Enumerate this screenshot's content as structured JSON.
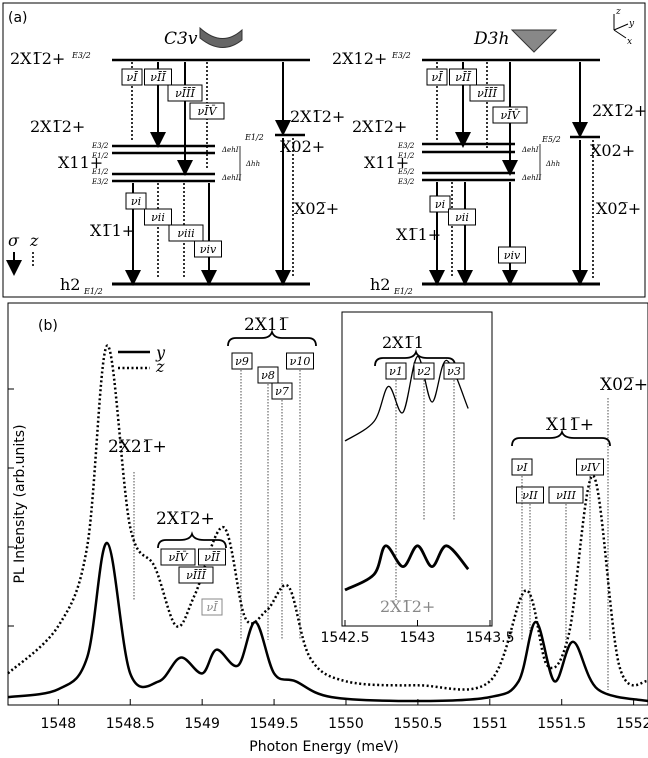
{
  "panel_a": {
    "label": "(a)",
    "c3v": {
      "group": "C3v",
      "top_label": "2X1̅2+",
      "top_sub": "E3/2",
      "mid_left": "2X1̅2+",
      "mid_right": "2X1̅2+",
      "x02_label": "X02+",
      "x02_sub": "E1/2",
      "x11_label": "X11+",
      "x11_subs": [
        "E3/2",
        "E1/2",
        "E1/2",
        "E3/2"
      ],
      "x11bar_label": "X1̅1+",
      "x02bar_label": "X02̅+",
      "ground": "h2",
      "ground_sub": "E1/2",
      "delta_I": "ΔehI",
      "delta_II": "ΔehII",
      "delta_hh": "Δhh",
      "upper_boxes": [
        "νĪ",
        "νĪĪ",
        "νĪĪĪ",
        "νĪV̄"
      ],
      "lower_boxes": [
        "νi",
        "νii",
        "νiii",
        "νiv"
      ]
    },
    "d3h": {
      "group": "D3h",
      "top_label": "2X12+",
      "top_sub": "E3/2",
      "mid_left": "2X1̅2+",
      "mid_right": "2X1̅2+",
      "x02_label": "X02+",
      "x02_sub": "E5/2",
      "x11_label": "X11+",
      "x11_subs": [
        "E3/2",
        "E1/2",
        "E5/2",
        "E3/2"
      ],
      "x11bar_label": "X1̅1+",
      "x02bar_label": "X02̅+",
      "ground": "h2",
      "ground_sub": "E1/2",
      "delta_I": "ΔehI",
      "delta_II": "ΔehII",
      "delta_hh": "Δhh",
      "upper_boxes": [
        "νĪ",
        "νĪĪ",
        "νĪĪĪ",
        "νĪV̄"
      ],
      "lower_boxes": [
        "νi",
        "νii",
        "νiv"
      ]
    },
    "legend_sigma": "σ",
    "legend_z": "z",
    "axes_labels": [
      "z",
      "y",
      "x"
    ]
  },
  "panel_b": {
    "label": "(b)",
    "legend": [
      {
        "name": "y",
        "style": "solid"
      },
      {
        "name": "z",
        "style": "dotted"
      }
    ],
    "labels": {
      "x21": "2X21̅+",
      "x12": "2X1̅2+",
      "x11bracket": "2X11̅",
      "x11plus": "X11̅+",
      "x02": "X02̅+",
      "inset_title": "2X1̅1",
      "inset_x12": "2X1̅2+"
    },
    "main_boxes": [
      "ν9",
      "ν8",
      "ν7",
      "ν10"
    ],
    "left_boxes": [
      "νĪV̄",
      "νĪĪ",
      "νĪĪĪ",
      "νĪ"
    ],
    "right_boxes": [
      "νI",
      "νII",
      "νIII",
      "νIV"
    ],
    "inset_boxes": [
      "ν1",
      "ν2",
      "ν3"
    ]
  },
  "chart_data": [
    {
      "type": "line",
      "xlabel": "Photon Energy (meV)",
      "ylabel": "PL Intensity (arb.units)",
      "xlim": [
        1547.65,
        1552.1
      ],
      "xticks": [
        "1548",
        "1548.5",
        "1549",
        "1549.5",
        "1550",
        "1550.5",
        "1551",
        "1551.5",
        "1552"
      ],
      "legend": "top-left",
      "series": [
        {
          "name": "y",
          "style": "solid",
          "x": [
            1547.65,
            1548.0,
            1548.2,
            1548.34,
            1548.5,
            1548.7,
            1548.85,
            1549.0,
            1549.1,
            1549.25,
            1549.37,
            1549.5,
            1549.65,
            1549.9,
            1550.5,
            1551.0,
            1551.2,
            1551.32,
            1551.45,
            1551.58,
            1551.75,
            1552.1
          ],
          "y": [
            0.02,
            0.04,
            0.12,
            0.41,
            0.08,
            0.06,
            0.12,
            0.08,
            0.14,
            0.1,
            0.21,
            0.08,
            0.06,
            0.02,
            0.01,
            0.02,
            0.06,
            0.21,
            0.06,
            0.16,
            0.04,
            0.01
          ]
        },
        {
          "name": "z",
          "style": "dotted",
          "x": [
            1547.65,
            1548.0,
            1548.2,
            1548.34,
            1548.5,
            1548.67,
            1548.82,
            1548.95,
            1549.15,
            1549.3,
            1549.45,
            1549.6,
            1549.75,
            1550.0,
            1550.5,
            1551.0,
            1551.25,
            1551.4,
            1551.55,
            1551.72,
            1551.9,
            1552.1
          ],
          "y": [
            0.08,
            0.2,
            0.4,
            0.91,
            0.45,
            0.35,
            0.2,
            0.28,
            0.45,
            0.22,
            0.24,
            0.3,
            0.12,
            0.06,
            0.05,
            0.06,
            0.29,
            0.1,
            0.18,
            0.58,
            0.1,
            0.06
          ]
        }
      ]
    },
    {
      "type": "line",
      "xlim": [
        1542.5,
        1543.5
      ],
      "xticks": [
        "1542.5",
        "1543",
        "1543.5"
      ],
      "series": [
        {
          "name": "y",
          "style": "thin",
          "x": [
            1542.5,
            1542.7,
            1542.8,
            1542.9,
            1543.0,
            1543.1,
            1543.2,
            1543.35
          ],
          "y": [
            0.3,
            0.45,
            0.72,
            0.52,
            0.95,
            0.6,
            0.92,
            0.55
          ]
        },
        {
          "name": "y",
          "style": "thick",
          "x": [
            1542.5,
            1542.7,
            1542.78,
            1542.9,
            1543.0,
            1543.1,
            1543.2,
            1543.35
          ],
          "y": [
            0.0,
            0.12,
            0.34,
            0.18,
            0.34,
            0.18,
            0.34,
            0.16
          ]
        }
      ]
    }
  ]
}
